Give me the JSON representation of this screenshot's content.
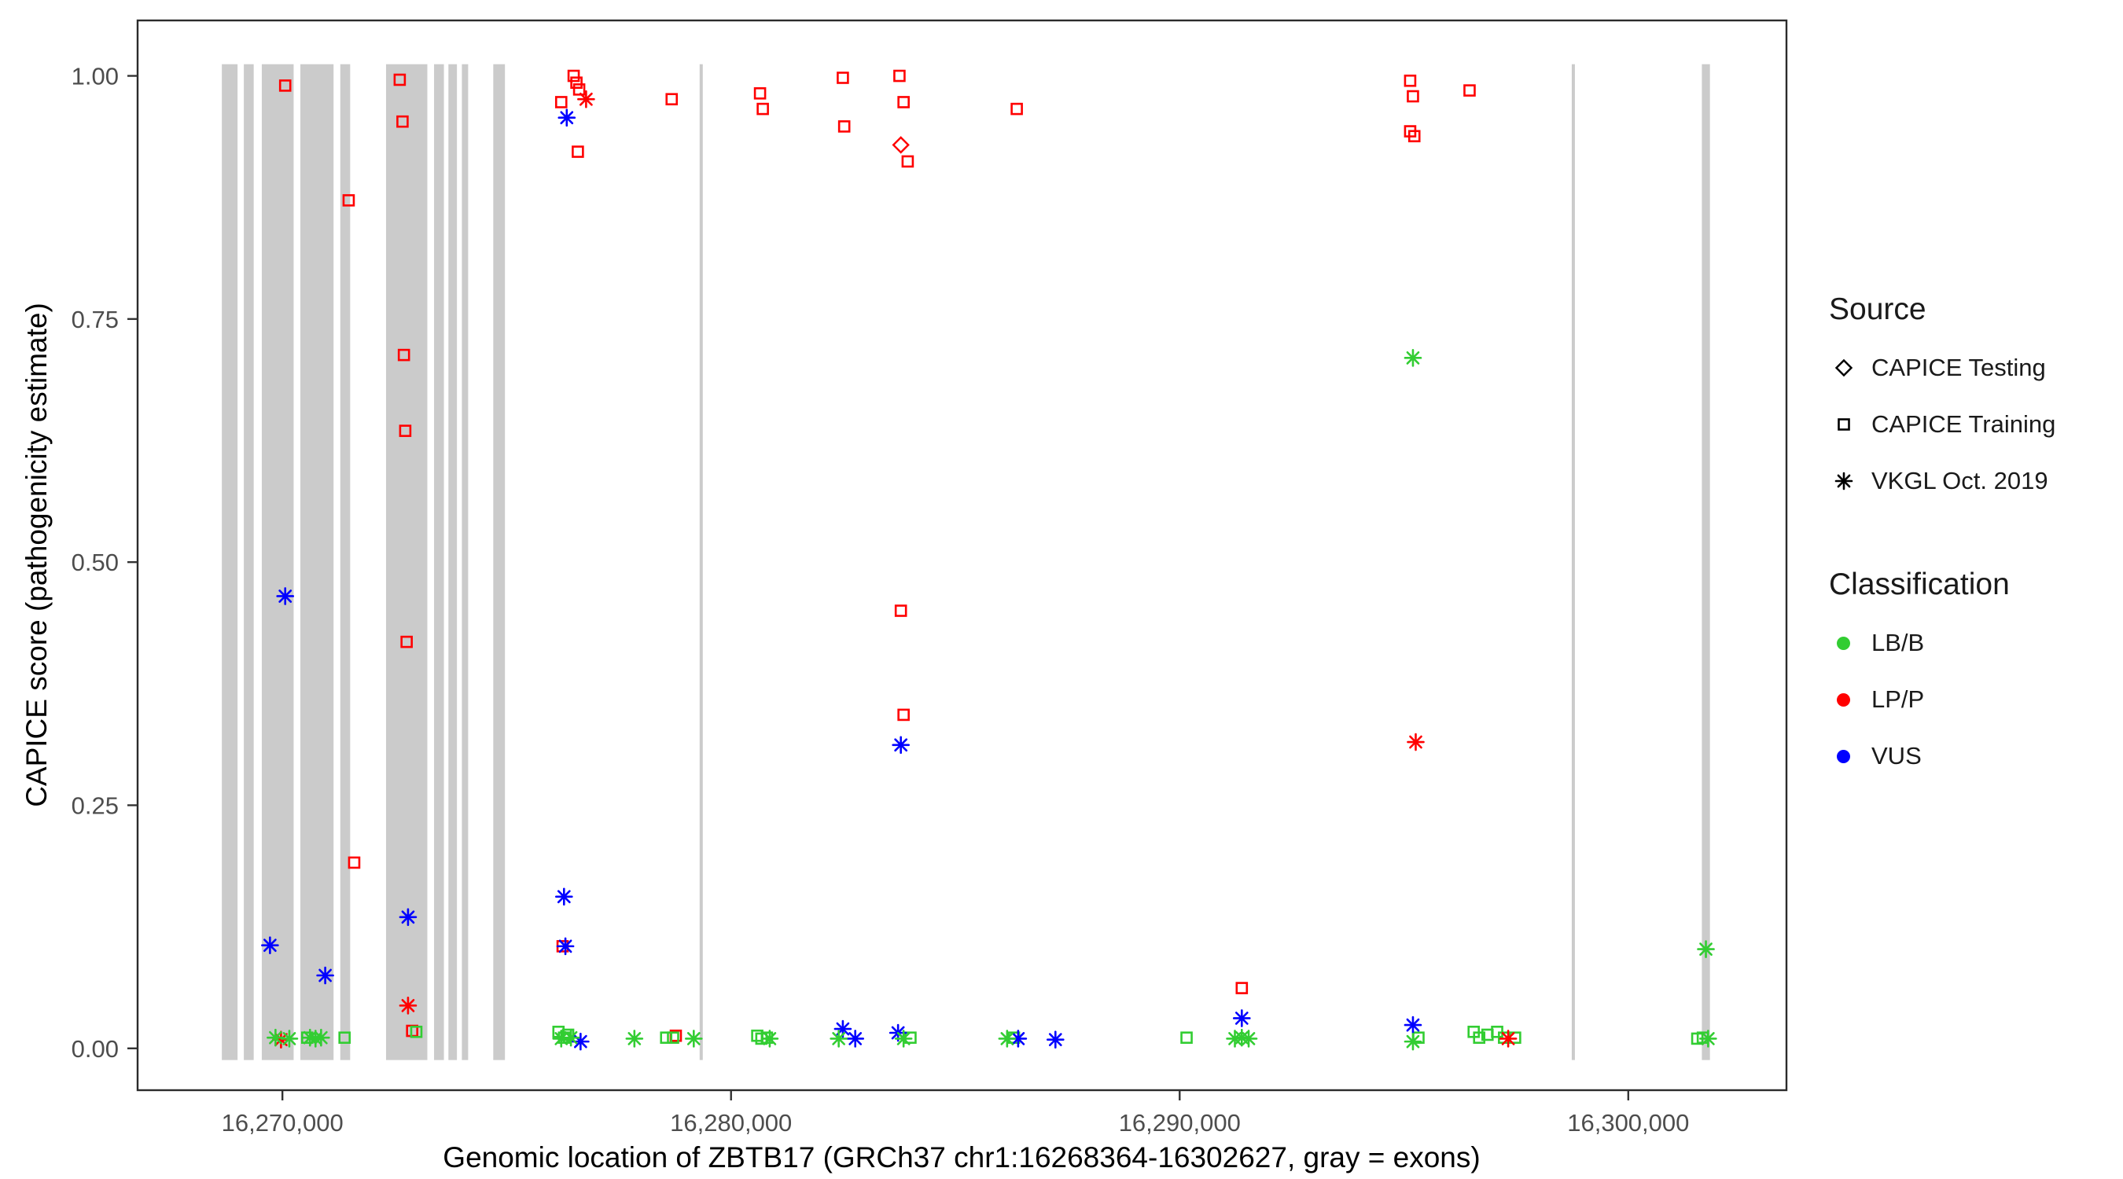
{
  "chart_data": {
    "type": "scatter",
    "xlabel": "Genomic location of ZBTB17 (GRCh37 chr1:16268364-16302627, gray = exons)",
    "ylabel": "CAPICE score (pathogenicity estimate)",
    "xlim": [
      16266772,
      16303526
    ],
    "ylim": [
      -0.043,
      1.057
    ],
    "grid": false,
    "legend_position": "right",
    "exon_color": "#cbcbcb",
    "panel_border_color": "#2b2b2b",
    "tick_color": "#4d4d4d",
    "xticks": [
      {
        "value": 16270000,
        "label": "16,270,000"
      },
      {
        "value": 16280000,
        "label": "16,280,000"
      },
      {
        "value": 16290000,
        "label": "16,290,000"
      },
      {
        "value": 16300000,
        "label": "16,300,000"
      }
    ],
    "yticks": [
      {
        "value": 0.0,
        "label": "0.00"
      },
      {
        "value": 0.25,
        "label": "0.25"
      },
      {
        "value": 0.5,
        "label": "0.50"
      },
      {
        "value": 0.75,
        "label": "0.75"
      },
      {
        "value": 1.0,
        "label": "1.00"
      }
    ],
    "class_colors": {
      "LB/B": "#32cd32",
      "LP/P": "#ff0000",
      "VUS": "#0000ff"
    },
    "exons": [
      [
        16268650,
        16269000
      ],
      [
        16269140,
        16269360
      ],
      [
        16269540,
        16270250
      ],
      [
        16270400,
        16271140
      ],
      [
        16271290,
        16271510
      ],
      [
        16272310,
        16273230
      ],
      [
        16273380,
        16273600
      ],
      [
        16273700,
        16273890
      ],
      [
        16274000,
        16274140
      ],
      [
        16274700,
        16274960
      ],
      [
        16279300,
        16279370
      ],
      [
        16298740,
        16298810
      ],
      [
        16301640,
        16301820
      ]
    ],
    "series": [
      {
        "name": "CAPICE Testing",
        "shape": "diamond",
        "points": [
          [
            16283785,
            0.929,
            "LP/P"
          ]
        ]
      },
      {
        "name": "CAPICE Training",
        "shape": "square",
        "points": [
          [
            16270062,
            0.99,
            "LP/P"
          ],
          [
            16271477,
            0.872,
            "LP/P"
          ],
          [
            16271600,
            0.191,
            "LP/P"
          ],
          [
            16272615,
            0.996,
            "LP/P"
          ],
          [
            16272677,
            0.953,
            "LP/P"
          ],
          [
            16272708,
            0.713,
            "LP/P"
          ],
          [
            16272738,
            0.635,
            "LP/P"
          ],
          [
            16272769,
            0.418,
            "LP/P"
          ],
          [
            16272892,
            0.018,
            "LP/P"
          ],
          [
            16276215,
            0.973,
            "LP/P"
          ],
          [
            16276492,
            1.0,
            "LP/P"
          ],
          [
            16276554,
            0.993,
            "LP/P"
          ],
          [
            16276615,
            0.986,
            "LP/P"
          ],
          [
            16276585,
            0.922,
            "LP/P"
          ],
          [
            16276246,
            0.105,
            "LP/P"
          ],
          [
            16278677,
            0.976,
            "LP/P"
          ],
          [
            16278769,
            0.013,
            "LP/P"
          ],
          [
            16280646,
            0.982,
            "LP/P"
          ],
          [
            16280708,
            0.966,
            "LP/P"
          ],
          [
            16282492,
            0.998,
            "LP/P"
          ],
          [
            16282523,
            0.948,
            "LP/P"
          ],
          [
            16283754,
            1.0,
            "LP/P"
          ],
          [
            16283846,
            0.973,
            "LP/P"
          ],
          [
            16283938,
            0.912,
            "LP/P"
          ],
          [
            16283785,
            0.45,
            "LP/P"
          ],
          [
            16283846,
            0.343,
            "LP/P"
          ],
          [
            16286369,
            0.966,
            "LP/P"
          ],
          [
            16291385,
            0.062,
            "LP/P"
          ],
          [
            16295138,
            0.995,
            "LP/P"
          ],
          [
            16295200,
            0.979,
            "LP/P"
          ],
          [
            16295138,
            0.943,
            "LP/P"
          ],
          [
            16295231,
            0.938,
            "LP/P"
          ],
          [
            16296462,
            0.985,
            "LP/P"
          ],
          [
            16270554,
            0.011,
            "LB/B"
          ],
          [
            16271385,
            0.011,
            "LB/B"
          ],
          [
            16272985,
            0.017,
            "LB/B"
          ],
          [
            16276154,
            0.017,
            "LB/B"
          ],
          [
            16276277,
            0.011,
            "LB/B"
          ],
          [
            16276369,
            0.014,
            "LB/B"
          ],
          [
            16278554,
            0.011,
            "LB/B"
          ],
          [
            16278708,
            0.011,
            "LB/B"
          ],
          [
            16280585,
            0.013,
            "LB/B"
          ],
          [
            16280677,
            0.01,
            "LB/B"
          ],
          [
            16280800,
            0.011,
            "LB/B"
          ],
          [
            16284000,
            0.011,
            "LB/B"
          ],
          [
            16286308,
            0.011,
            "LB/B"
          ],
          [
            16290154,
            0.011,
            "LB/B"
          ],
          [
            16295323,
            0.011,
            "LB/B"
          ],
          [
            16296554,
            0.017,
            "LB/B"
          ],
          [
            16296677,
            0.011,
            "LB/B"
          ],
          [
            16296862,
            0.014,
            "LB/B"
          ],
          [
            16297077,
            0.017,
            "LB/B"
          ],
          [
            16297231,
            0.011,
            "LB/B"
          ],
          [
            16297477,
            0.011,
            "LB/B"
          ],
          [
            16301538,
            0.01,
            "LB/B"
          ],
          [
            16301662,
            0.011,
            "LB/B"
          ]
        ]
      },
      {
        "name": "VKGL Oct. 2019",
        "shape": "asterisk",
        "points": [
          [
            16276769,
            0.976,
            "LP/P"
          ],
          [
            16272800,
            0.044,
            "LP/P"
          ],
          [
            16295262,
            0.315,
            "LP/P"
          ],
          [
            16269969,
            0.009,
            "LP/P"
          ],
          [
            16297323,
            0.01,
            "LP/P"
          ],
          [
            16270062,
            0.465,
            "VUS"
          ],
          [
            16269723,
            0.106,
            "VUS"
          ],
          [
            16270954,
            0.075,
            "VUS"
          ],
          [
            16272800,
            0.135,
            "VUS"
          ],
          [
            16276338,
            0.957,
            "VUS"
          ],
          [
            16276277,
            0.156,
            "VUS"
          ],
          [
            16276308,
            0.105,
            "VUS"
          ],
          [
            16276646,
            0.007,
            "VUS"
          ],
          [
            16282492,
            0.02,
            "VUS"
          ],
          [
            16283785,
            0.312,
            "VUS"
          ],
          [
            16283723,
            0.016,
            "VUS"
          ],
          [
            16282769,
            0.01,
            "VUS"
          ],
          [
            16286400,
            0.01,
            "VUS"
          ],
          [
            16287231,
            0.009,
            "VUS"
          ],
          [
            16291385,
            0.031,
            "VUS"
          ],
          [
            16295200,
            0.024,
            "VUS"
          ],
          [
            16269846,
            0.011,
            "LB/B"
          ],
          [
            16270154,
            0.01,
            "LB/B"
          ],
          [
            16270615,
            0.011,
            "LB/B"
          ],
          [
            16270738,
            0.01,
            "LB/B"
          ],
          [
            16270862,
            0.011,
            "LB/B"
          ],
          [
            16276215,
            0.01,
            "LB/B"
          ],
          [
            16276431,
            0.011,
            "LB/B"
          ],
          [
            16277846,
            0.01,
            "LB/B"
          ],
          [
            16279169,
            0.01,
            "LB/B"
          ],
          [
            16280862,
            0.01,
            "LB/B"
          ],
          [
            16282400,
            0.01,
            "LB/B"
          ],
          [
            16283846,
            0.01,
            "LB/B"
          ],
          [
            16286154,
            0.01,
            "LB/B"
          ],
          [
            16291231,
            0.01,
            "LB/B"
          ],
          [
            16291385,
            0.011,
            "LB/B"
          ],
          [
            16291538,
            0.01,
            "LB/B"
          ],
          [
            16295200,
            0.71,
            "LB/B"
          ],
          [
            16295200,
            0.007,
            "LB/B"
          ],
          [
            16301730,
            0.102,
            "LB/B"
          ],
          [
            16301780,
            0.01,
            "LB/B"
          ]
        ]
      }
    ]
  },
  "legend": {
    "source": {
      "title": "Source",
      "items": [
        {
          "label": "CAPICE Testing",
          "symbol": "diamond"
        },
        {
          "label": "CAPICE Training",
          "symbol": "square"
        },
        {
          "label": "VKGL Oct. 2019",
          "symbol": "asterisk"
        }
      ]
    },
    "classification": {
      "title": "Classification",
      "items": [
        {
          "label": "LB/B",
          "color": "#32cd32"
        },
        {
          "label": "LP/P",
          "color": "#ff0000"
        },
        {
          "label": "VUS",
          "color": "#0000ff"
        }
      ]
    }
  }
}
